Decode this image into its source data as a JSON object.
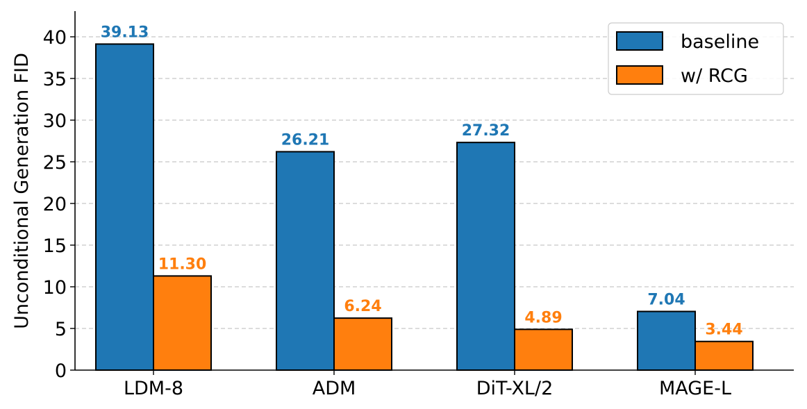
{
  "chart_data": {
    "type": "bar",
    "title": "",
    "xlabel": "",
    "ylabel": "Unconditional Generation FID",
    "categories": [
      "LDM-8",
      "ADM",
      "DiT-XL/2",
      "MAGE-L"
    ],
    "series": [
      {
        "name": "baseline",
        "color": "#1f77b4",
        "values": [
          39.13,
          26.21,
          27.32,
          7.04
        ],
        "labels": [
          "39.13",
          "26.21",
          "27.32",
          "7.04"
        ]
      },
      {
        "name": "w/ RCG",
        "color": "#ff7f0e",
        "values": [
          11.3,
          6.24,
          4.89,
          3.44
        ],
        "labels": [
          "11.30",
          "6.24",
          "4.89",
          "3.44"
        ]
      }
    ],
    "ylim": [
      0,
      43
    ],
    "yticks": [
      "0",
      "5",
      "10",
      "15",
      "20",
      "25",
      "30",
      "35",
      "40"
    ],
    "grid": "horizontal dashed",
    "legend_position": "top-right"
  }
}
